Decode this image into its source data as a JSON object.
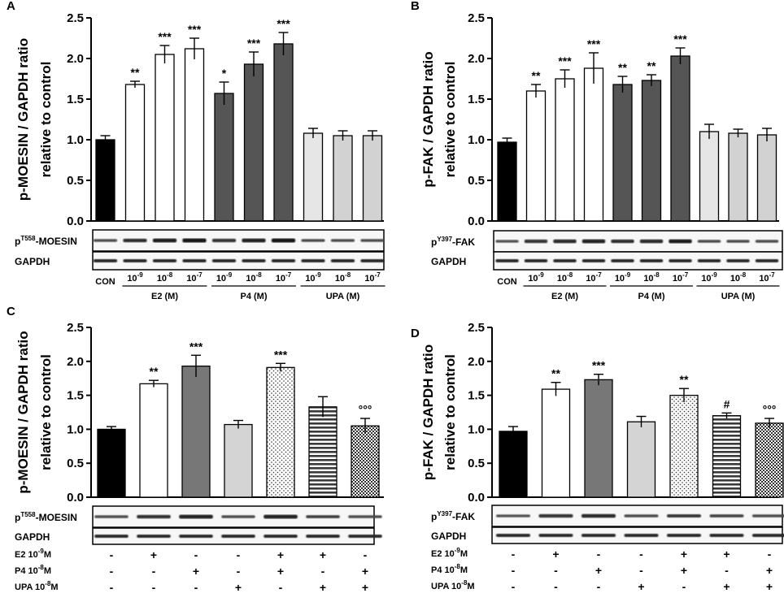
{
  "panels": [
    {
      "id": "A",
      "label": "A",
      "ylabel_line1": "p-MOESIN / GAPDH ratio",
      "ylabel_line2": "relative to control",
      "blot_rows": [
        {
          "label_prefix": "p",
          "label_sup": "T558",
          "label_suffix": "-MOESIN"
        },
        {
          "label_prefix": "GAPDH",
          "label_sup": "",
          "label_suffix": ""
        }
      ],
      "xaxis_kind": "dose",
      "dose_labels": [
        "CON",
        "10-9",
        "10-8",
        "10-7",
        "10-9",
        "10-8",
        "10-7",
        "10-9",
        "10-8",
        "10-7"
      ],
      "groups": [
        {
          "name": "E2 (M)",
          "from": 1,
          "to": 3
        },
        {
          "name": "P4 (M)",
          "from": 4,
          "to": 6
        },
        {
          "name": "UPA (M)",
          "from": 7,
          "to": 9
        }
      ]
    },
    {
      "id": "B",
      "label": "B",
      "ylabel_line1": "p-FAK / GAPDH ratio",
      "ylabel_line2": "relative to control",
      "blot_rows": [
        {
          "label_prefix": "p",
          "label_sup": "Y397",
          "label_suffix": "-FAK"
        },
        {
          "label_prefix": "GAPDH",
          "label_sup": "",
          "label_suffix": ""
        }
      ],
      "xaxis_kind": "dose",
      "dose_labels": [
        "CON",
        "10-9",
        "10-8",
        "10-7",
        "10-9",
        "10-8",
        "10-7",
        "10-9",
        "10-8",
        "10-7"
      ],
      "groups": [
        {
          "name": "E2 (M)",
          "from": 1,
          "to": 3
        },
        {
          "name": "P4 (M)",
          "from": 4,
          "to": 6
        },
        {
          "name": "UPA (M)",
          "from": 7,
          "to": 9
        }
      ]
    },
    {
      "id": "C",
      "label": "C",
      "ylabel_line1": "p-MOESIN / GAPDH ratio",
      "ylabel_line2": "relative to control",
      "blot_rows": [
        {
          "label_prefix": "p",
          "label_sup": "T558",
          "label_suffix": "-MOESIN"
        },
        {
          "label_prefix": "GAPDH",
          "label_sup": "",
          "label_suffix": ""
        }
      ],
      "xaxis_kind": "combo",
      "conditions": [
        {
          "label": "E2 10-9M",
          "signs": [
            "-",
            "+",
            "-",
            "-",
            "+",
            "+",
            "-"
          ]
        },
        {
          "label": "P4 10-8M",
          "signs": [
            "-",
            "-",
            "+",
            "-",
            "+",
            "-",
            "+"
          ]
        },
        {
          "label": "UPA 10-8M",
          "signs": [
            "-",
            "-",
            "-",
            "+",
            "-",
            "+",
            "+"
          ]
        }
      ]
    },
    {
      "id": "D",
      "label": "D",
      "ylabel_line1": "p-FAK / GAPDH ratio",
      "ylabel_line2": "relative to control",
      "blot_rows": [
        {
          "label_prefix": "p",
          "label_sup": "Y397",
          "label_suffix": "-FAK"
        },
        {
          "label_prefix": "GAPDH",
          "label_sup": "",
          "label_suffix": ""
        }
      ],
      "xaxis_kind": "combo",
      "conditions": [
        {
          "label": "E2 10-9M",
          "signs": [
            "-",
            "+",
            "-",
            "-",
            "+",
            "+",
            "-"
          ]
        },
        {
          "label": "P4 10-8M",
          "signs": [
            "-",
            "-",
            "+",
            "-",
            "+",
            "-",
            "+"
          ]
        },
        {
          "label": "UPA 10-8M",
          "signs": [
            "-",
            "-",
            "-",
            "+",
            "-",
            "+",
            "+"
          ]
        }
      ]
    }
  ],
  "chart_data": [
    {
      "panel": "A",
      "type": "bar",
      "title": "",
      "xlabel": "",
      "ylabel": "p-MOESIN / GAPDH ratio relative to control",
      "ylim": [
        0,
        2.5
      ],
      "yticks": [
        "0.0",
        "0.5",
        "1.0",
        "1.5",
        "2.0",
        "2.5"
      ],
      "categories": [
        "CON",
        "E2 10-9",
        "E2 10-8",
        "E2 10-7",
        "P4 10-9",
        "P4 10-8",
        "P4 10-7",
        "UPA 10-9",
        "UPA 10-8",
        "UPA 10-7"
      ],
      "values": [
        1.0,
        1.68,
        2.05,
        2.12,
        1.57,
        1.93,
        2.18,
        1.08,
        1.05,
        1.05
      ],
      "errors": [
        0.05,
        0.04,
        0.11,
        0.13,
        0.14,
        0.15,
        0.14,
        0.06,
        0.06,
        0.06
      ],
      "annotations": [
        "",
        "**",
        "***",
        "***",
        "*",
        "***",
        "***",
        "",
        "",
        ""
      ],
      "fills": [
        "#000000",
        "#ffffff",
        "#ffffff",
        "#ffffff",
        "#555555",
        "#555555",
        "#555555",
        "#e6e6e6",
        "#d2d2d2",
        "#d2d2d2"
      ]
    },
    {
      "panel": "B",
      "type": "bar",
      "title": "",
      "xlabel": "",
      "ylabel": "p-FAK / GAPDH ratio relative to control",
      "ylim": [
        0,
        2.5
      ],
      "yticks": [
        "0.0",
        "0.5",
        "1.0",
        "1.5",
        "2.0",
        "2.5"
      ],
      "categories": [
        "CON",
        "E2 10-9",
        "E2 10-8",
        "E2 10-7",
        "P4 10-9",
        "P4 10-8",
        "P4 10-7",
        "UPA 10-9",
        "UPA 10-8",
        "UPA 10-7"
      ],
      "values": [
        0.97,
        1.6,
        1.75,
        1.88,
        1.68,
        1.73,
        2.03,
        1.1,
        1.08,
        1.06
      ],
      "errors": [
        0.05,
        0.08,
        0.11,
        0.19,
        0.1,
        0.07,
        0.1,
        0.09,
        0.05,
        0.08
      ],
      "annotations": [
        "",
        "**",
        "***",
        "***",
        "**",
        "**",
        "***",
        "",
        "",
        ""
      ],
      "fills": [
        "#000000",
        "#ffffff",
        "#ffffff",
        "#ffffff",
        "#555555",
        "#555555",
        "#555555",
        "#e6e6e6",
        "#d2d2d2",
        "#d2d2d2"
      ]
    },
    {
      "panel": "C",
      "type": "bar",
      "title": "",
      "xlabel": "",
      "ylabel": "p-MOESIN / GAPDH ratio relative to control",
      "ylim": [
        0,
        2.5
      ],
      "yticks": [
        "0.0",
        "0.5",
        "1.0",
        "1.5",
        "2.0",
        "2.5"
      ],
      "categories": [
        "Control",
        "E2",
        "P4",
        "UPA",
        "E2+P4",
        "E2+UPA",
        "P4+UPA"
      ],
      "values": [
        1.0,
        1.67,
        1.93,
        1.07,
        1.91,
        1.33,
        1.05
      ],
      "errors": [
        0.04,
        0.05,
        0.16,
        0.06,
        0.06,
        0.15,
        0.11
      ],
      "annotations": [
        "",
        "**",
        "***",
        "",
        "***",
        "",
        "°°°"
      ],
      "fills": [
        "#000000",
        "#ffffff",
        "#777777",
        "#d4d4d4",
        "dots",
        "stripes",
        "checks"
      ]
    },
    {
      "panel": "D",
      "type": "bar",
      "title": "",
      "xlabel": "",
      "ylabel": "p-FAK / GAPDH ratio relative to control",
      "ylim": [
        0,
        2.5
      ],
      "yticks": [
        "0.0",
        "0.5",
        "1.0",
        "1.5",
        "2.0",
        "2.5"
      ],
      "categories": [
        "Control",
        "E2",
        "P4",
        "UPA",
        "E2+P4",
        "E2+UPA",
        "P4+UPA"
      ],
      "values": [
        0.97,
        1.59,
        1.73,
        1.11,
        1.5,
        1.2,
        1.09
      ],
      "errors": [
        0.07,
        0.1,
        0.08,
        0.08,
        0.1,
        0.04,
        0.07
      ],
      "annotations": [
        "",
        "**",
        "***",
        "",
        "**",
        "#",
        "°°°"
      ],
      "fills": [
        "#000000",
        "#ffffff",
        "#777777",
        "#d4d4d4",
        "dots",
        "stripes",
        "checks"
      ]
    }
  ]
}
